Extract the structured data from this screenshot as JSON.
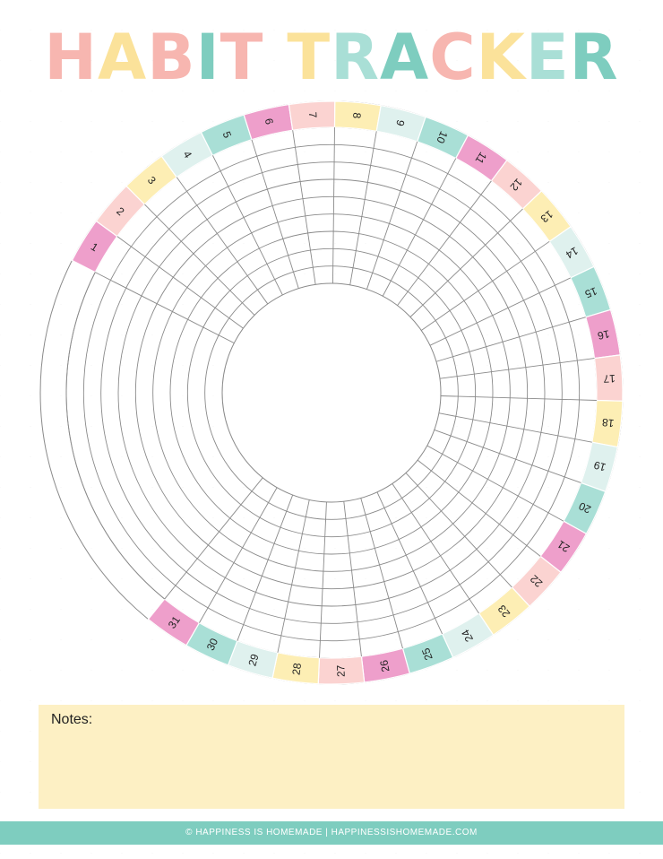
{
  "title": {
    "letters": [
      "H",
      "A",
      "B",
      "I",
      "T",
      " ",
      "T",
      "R",
      "A",
      "C",
      "K",
      "E",
      "R"
    ],
    "colors": [
      "#f7b6b0",
      "#fbe29a",
      "#f7b6b0",
      "#7ecdbf",
      "#f7b6b0",
      "",
      "#fbe29a",
      "#a9dfd6",
      "#7ecdbf",
      "#f7b6b0",
      "#fbe29a",
      "#a9dfd6",
      "#7ecdbf"
    ]
  },
  "tracker": {
    "days": [
      "1",
      "2",
      "3",
      "4",
      "5",
      "6",
      "7",
      "8",
      "9",
      "10",
      "11",
      "12",
      "13",
      "14",
      "15",
      "16",
      "17",
      "18",
      "19",
      "20",
      "21",
      "22",
      "23",
      "24",
      "25",
      "26",
      "27",
      "28",
      "29",
      "30",
      "31"
    ],
    "day_colors": [
      "#ee9fcb",
      "#fbd3d1",
      "#fdeeb4",
      "#dff1ee",
      "#a9dfd6",
      "#ee9fcb",
      "#fbd3d1",
      "#fdeeb4",
      "#dff1ee",
      "#a9dfd6",
      "#ee9fcb",
      "#fbd3d1",
      "#fdeeb4",
      "#dff1ee",
      "#a9dfd6",
      "#ee9fcb",
      "#fbd3d1",
      "#fdeeb4",
      "#dff1ee",
      "#a9dfd6",
      "#ee9fcb",
      "#fbd3d1",
      "#fdeeb4",
      "#dff1ee",
      "#a9dfd6",
      "#ee9fcb",
      "#fbd3d1",
      "#fdeeb4",
      "#dff1ee",
      "#a9dfd6",
      "#ee9fcb"
    ],
    "habit_rings": 9
  },
  "notes": {
    "label": "Notes:"
  },
  "footer": {
    "text": "© HAPPINESS IS HOMEMADE | HAPPINESSISHOMEMADE.COM"
  }
}
